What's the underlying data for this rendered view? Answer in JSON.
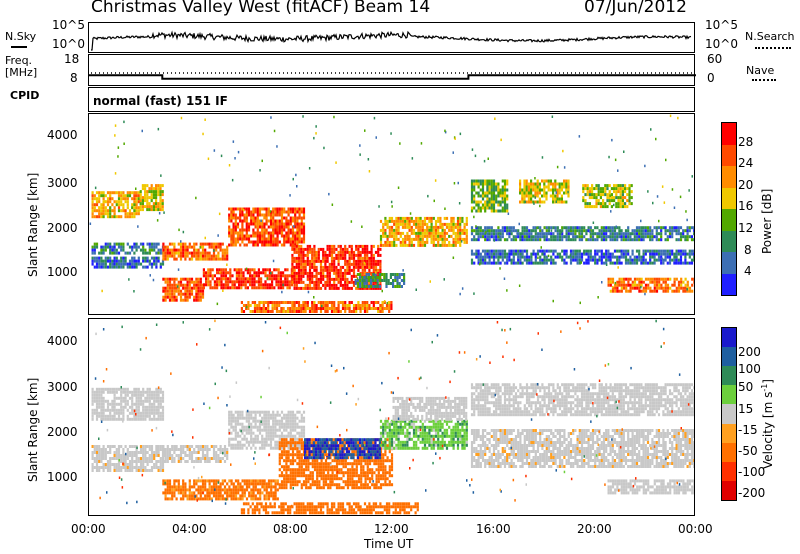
{
  "header": {
    "station": "Christmas Valley West (fitACF)",
    "beam": "Beam 14",
    "date": "07/Jun/2012"
  },
  "nsky_panel": {
    "left_label": "N.Sky",
    "right_label": "N.Search",
    "left_ticks": [
      "10^5",
      "10^0"
    ],
    "right_ticks": [
      "10^5",
      "10^0"
    ]
  },
  "freq_panel": {
    "left_label_1": "Freq.",
    "left_label_2": "[MHz]",
    "right_label": "Nave",
    "left_ticks": [
      "18",
      "8"
    ],
    "right_ticks": [
      "60",
      "0"
    ]
  },
  "cpid_panel": {
    "label": "CPID",
    "text": "normal (fast) 151 IF"
  },
  "power_panel": {
    "ylabel": "Slant Range [km]",
    "yticks": [
      "4000",
      "3000",
      "2000",
      "1000"
    ],
    "colorbar_label": "Power [dB]",
    "colorbar_ticks": [
      "28",
      "24",
      "20",
      "16",
      "12",
      "8",
      "4"
    ],
    "colorbar_colors": [
      "#ff0000",
      "#ff4a00",
      "#ff8c00",
      "#f0c800",
      "#52a800",
      "#2e8b57",
      "#3c6fb4",
      "#1f1fff"
    ]
  },
  "velocity_panel": {
    "ylabel": "Slant Range [km]",
    "yticks": [
      "4000",
      "3000",
      "2000",
      "1000"
    ],
    "colorbar_label": "Velocity [m s",
    "colorbar_label_sup": "-1",
    "colorbar_label_end": "]",
    "colorbar_ticks": [
      "200",
      "100",
      "50",
      "15",
      "-15",
      "-50",
      "-100",
      "-200"
    ],
    "colorbar_colors": [
      "#1a1acc",
      "#1e5fa0",
      "#2e8b57",
      "#6ccf3c",
      "#c8c8c8",
      "#ffa020",
      "#ff7000",
      "#ff3000",
      "#e00000"
    ]
  },
  "x_axis": {
    "label": "Time UT",
    "ticks": [
      "00:00",
      "04:00",
      "08:00",
      "12:00",
      "16:00",
      "20:00",
      "00:00"
    ]
  },
  "chart_data": {
    "type": "heatmap",
    "x_unit": "hours UT",
    "xlim": [
      0,
      24
    ],
    "ylim": [
      180,
      4500
    ],
    "frequency_steps_mhz": [
      {
        "t0": 0,
        "t1": 2.9,
        "f": 11.5
      },
      {
        "t0": 2.9,
        "t1": 15.0,
        "f": 10.2
      },
      {
        "t0": 15.0,
        "t1": 24,
        "f": 11.5
      }
    ],
    "power_bands": [
      {
        "t0": 0.1,
        "t1": 2.0,
        "r0": 2300,
        "r1": 2850,
        "db": 20
      },
      {
        "t0": 2.0,
        "t1": 2.9,
        "r0": 2450,
        "r1": 3000,
        "db": 18
      },
      {
        "t0": 0.1,
        "t1": 2.9,
        "r0": 1550,
        "r1": 1750,
        "db": 8
      },
      {
        "t0": 0.1,
        "t1": 2.9,
        "r0": 1250,
        "r1": 1450,
        "db": 6
      },
      {
        "t0": 2.9,
        "t1": 5.5,
        "r0": 1400,
        "r1": 1750,
        "db": 24
      },
      {
        "t0": 5.5,
        "t1": 8.5,
        "r0": 1700,
        "r1": 2500,
        "db": 26
      },
      {
        "t0": 2.9,
        "t1": 4.5,
        "r0": 550,
        "r1": 1000,
        "db": 26
      },
      {
        "t0": 4.5,
        "t1": 8.0,
        "r0": 800,
        "r1": 1200,
        "db": 28
      },
      {
        "t0": 8.0,
        "t1": 11.5,
        "r0": 800,
        "r1": 1700,
        "db": 28
      },
      {
        "t0": 11.5,
        "t1": 14.9,
        "r0": 1700,
        "r1": 2300,
        "db": 20
      },
      {
        "t0": 10.5,
        "t1": 12.5,
        "r0": 800,
        "r1": 1100,
        "db": 10
      },
      {
        "t0": 6.0,
        "t1": 12.0,
        "r0": 250,
        "r1": 500,
        "db": 24
      },
      {
        "t0": 15.1,
        "t1": 16.5,
        "r0": 2400,
        "r1": 3100,
        "db": 14
      },
      {
        "t0": 17.0,
        "t1": 19.0,
        "r0": 2600,
        "r1": 3100,
        "db": 18
      },
      {
        "t0": 19.5,
        "t1": 21.5,
        "r0": 2500,
        "r1": 3000,
        "db": 16
      },
      {
        "t0": 15.1,
        "t1": 24.0,
        "r0": 1800,
        "r1": 2100,
        "db": 8
      },
      {
        "t0": 15.1,
        "t1": 24.0,
        "r0": 1300,
        "r1": 1600,
        "db": 6
      },
      {
        "t0": 20.5,
        "t1": 24.0,
        "r0": 700,
        "r1": 1000,
        "db": 24
      }
    ],
    "velocity_bands": [
      {
        "t0": 0.1,
        "t1": 2.9,
        "r0": 2300,
        "r1": 3000,
        "v": 0
      },
      {
        "t0": 0.1,
        "t1": 2.9,
        "r0": 1200,
        "r1": 1750,
        "v": -5
      },
      {
        "t0": 2.9,
        "t1": 5.5,
        "r0": 1400,
        "r1": 1750,
        "v": -5
      },
      {
        "t0": 5.5,
        "t1": 8.5,
        "r0": 1700,
        "r1": 2500,
        "v": 0
      },
      {
        "t0": 2.9,
        "t1": 7.5,
        "r0": 550,
        "r1": 1000,
        "v": -40
      },
      {
        "t0": 7.5,
        "t1": 12.0,
        "r0": 800,
        "r1": 1900,
        "v": -45
      },
      {
        "t0": 8.5,
        "t1": 11.5,
        "r0": 1500,
        "r1": 1900,
        "v": 150
      },
      {
        "t0": 11.5,
        "t1": 14.9,
        "r0": 1700,
        "r1": 2300,
        "v": 25
      },
      {
        "t0": 12.0,
        "t1": 14.9,
        "r0": 2300,
        "r1": 2800,
        "v": 0
      },
      {
        "t0": 6.0,
        "t1": 13.0,
        "r0": 250,
        "r1": 500,
        "v": -60
      },
      {
        "t0": 15.1,
        "t1": 24.0,
        "r0": 2400,
        "r1": 3100,
        "v": 0
      },
      {
        "t0": 15.1,
        "t1": 24.0,
        "r0": 1300,
        "r1": 2100,
        "v": -5
      },
      {
        "t0": 20.5,
        "t1": 24.0,
        "r0": 700,
        "r1": 1000,
        "v": 0
      }
    ]
  }
}
